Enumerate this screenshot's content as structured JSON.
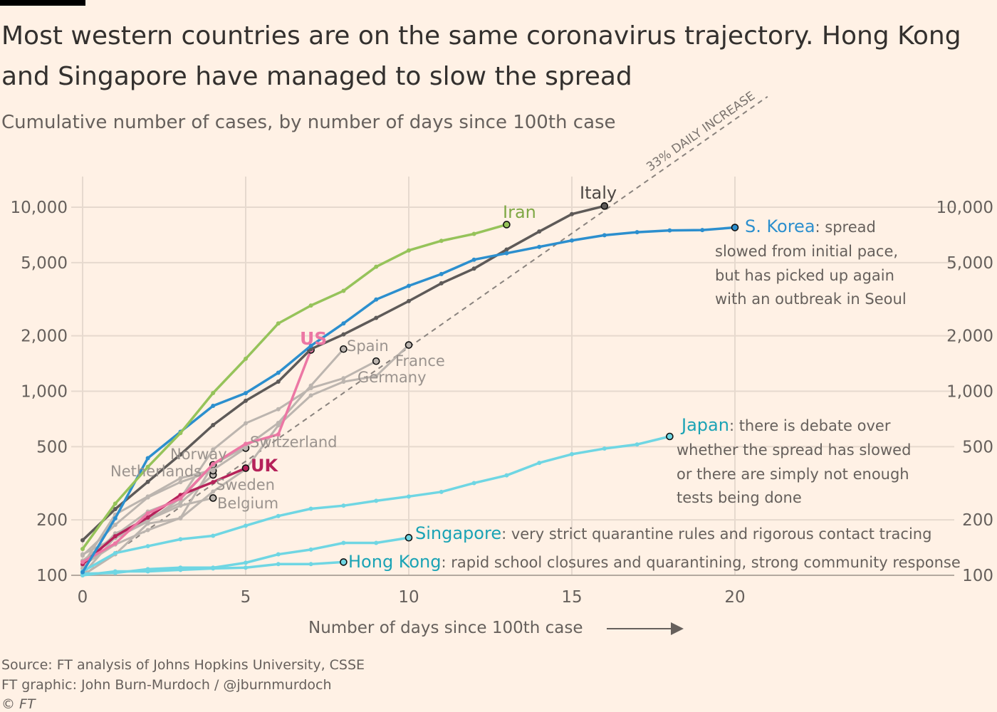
{
  "title_lines": [
    "Most western countries are on the same coronavirus trajectory. Hong Kong",
    "and Singapore have managed to slow the spread"
  ],
  "subtitle": "Cumulative number of cases, by number of days since 100th case",
  "footer": {
    "source": "Source: FT analysis of Johns Hopkins University, CSSE",
    "credit": "FT graphic: John Burn-Murdoch / @jburnmurdoch",
    "copyright": "© FT"
  },
  "colors": {
    "background": "#fff1e5",
    "iran": "#96c35a",
    "s_korea": "#2c8fce",
    "italy": "#5e5a58",
    "us": "#ec77a4",
    "uk": "#b5225a",
    "other_western": "#bcb5af",
    "east_asia": "#6fd6e3",
    "east_asia_label": "#1aa3b5",
    "reference": "#8a837e"
  },
  "chart_data": {
    "type": "line",
    "title": "Most western countries are on the same coronavirus trajectory. Hong Kong and Singapore have managed to slow the spread",
    "subtitle": "Cumulative number of cases, by number of days since 100th case",
    "xlabel": "Number of days since 100th case",
    "ylabel": "",
    "xlim": [
      0,
      27
    ],
    "ylim": [
      95,
      14500
    ],
    "yscale": "log",
    "x_ticks": [
      0,
      5,
      10,
      15,
      20
    ],
    "y_ticks": [
      100,
      200,
      500,
      1000,
      2000,
      5000,
      10000
    ],
    "y_tick_labels": [
      "100",
      "200",
      "500",
      "1,000",
      "2,000",
      "5,000",
      "10,000"
    ],
    "y_axis_both_sides": true,
    "grid": true,
    "legend": "direct labels",
    "reference_line": {
      "label": "33% DAILY INCREASE",
      "daily_growth": 0.33,
      "start_value": 100,
      "x_range": [
        0,
        21
      ]
    },
    "series": [
      {
        "name": "Belgium",
        "color_key": "other_western",
        "values": [
          109,
          169,
          200,
          239,
          263
        ]
      },
      {
        "name": "Sweden",
        "color_key": "other_western",
        "values": [
          101,
          161,
          203,
          248,
          351
        ]
      },
      {
        "name": "Netherlands",
        "color_key": "other_western",
        "values": [
          128,
          188,
          265,
          321,
          370
        ]
      },
      {
        "name": "Norway",
        "color_key": "other_western",
        "values": [
          113,
          147,
          176,
          205,
          398
        ]
      },
      {
        "name": "Switzerland",
        "color_key": "other_western",
        "values": [
          114,
          214,
          268,
          337,
          374,
          491
        ]
      },
      {
        "name": "Germany",
        "color_key": "other_western",
        "values": [
          130,
          159,
          196,
          262,
          482,
          670,
          799,
          1040,
          1176,
          1457
        ]
      },
      {
        "name": "France",
        "color_key": "other_western",
        "values": [
          100,
          130,
          191,
          204,
          285,
          377,
          653,
          949,
          1126,
          1209,
          1784
        ]
      },
      {
        "name": "Spain",
        "color_key": "other_western",
        "values": [
          120,
          165,
          222,
          259,
          400,
          500,
          673,
          1073,
          1695
        ]
      },
      {
        "name": "Hong Kong",
        "color_key": "east_asia",
        "values": [
          100,
          105,
          105,
          107,
          109,
          110,
          115,
          115,
          118
        ]
      },
      {
        "name": "Singapore",
        "color_key": "east_asia",
        "values": [
          102,
          103,
          108,
          110,
          110,
          117,
          130,
          138,
          150,
          150,
          160
        ]
      },
      {
        "name": "Japan",
        "color_key": "east_asia",
        "values": [
          105,
          132,
          144,
          157,
          164,
          186,
          210,
          230,
          239,
          254,
          268,
          284,
          317,
          349,
          408,
          455,
          488,
          514,
          568
        ]
      },
      {
        "name": "UK",
        "color_key": "uk",
        "values": [
          115,
          163,
          206,
          273,
          321,
          382
        ]
      },
      {
        "name": "US",
        "color_key": "us",
        "values": [
          118,
          149,
          217,
          262,
          402,
          518,
          583,
          1678
        ]
      },
      {
        "name": "Italy",
        "color_key": "italy",
        "values": [
          155,
          229,
          322,
          453,
          655,
          888,
          1128,
          1694,
          2036,
          2502,
          3089,
          3858,
          4636,
          5883,
          7375,
          9172,
          10149
        ]
      },
      {
        "name": "S. Korea",
        "color_key": "s_korea",
        "values": [
          104,
          204,
          433,
          602,
          833,
          977,
          1261,
          1766,
          2337,
          3150,
          3736,
          4335,
          5186,
          5621,
          6088,
          6593,
          7041,
          7314,
          7478,
          7513,
          7755
        ]
      },
      {
        "name": "Iran",
        "color_key": "iran",
        "values": [
          139,
          245,
          388,
          593,
          978,
          1501,
          2336,
          2922,
          3513,
          4747,
          5823,
          6566,
          7161,
          8042
        ]
      }
    ],
    "labels": {
      "iran": "Iran",
      "italy": "Italy",
      "us": "US",
      "uk": "UK",
      "spain": "Spain",
      "france": "France",
      "germany": "Germany",
      "switzerland": "Switzerland",
      "norway": "Norway",
      "netherlands": "Netherlands",
      "sweden": "Sweden",
      "belgium": "Belgium"
    },
    "annotations": {
      "s_korea": {
        "name": "S. Korea",
        "lines": [
          ": spread",
          "slowed from initial pace,",
          "but has picked up again",
          "with an outbreak in Seoul"
        ]
      },
      "japan": {
        "name": "Japan",
        "lines": [
          ": there is debate over",
          "whether the spread has slowed",
          "or there are simply not enough",
          "tests being done"
        ]
      },
      "singapore": {
        "name": "Singapore",
        "text": ": very strict quarantine rules and rigorous contact tracing"
      },
      "hong_kong": {
        "name": "Hong Kong",
        "text": ": rapid school closures and quarantining, strong community response"
      }
    }
  }
}
